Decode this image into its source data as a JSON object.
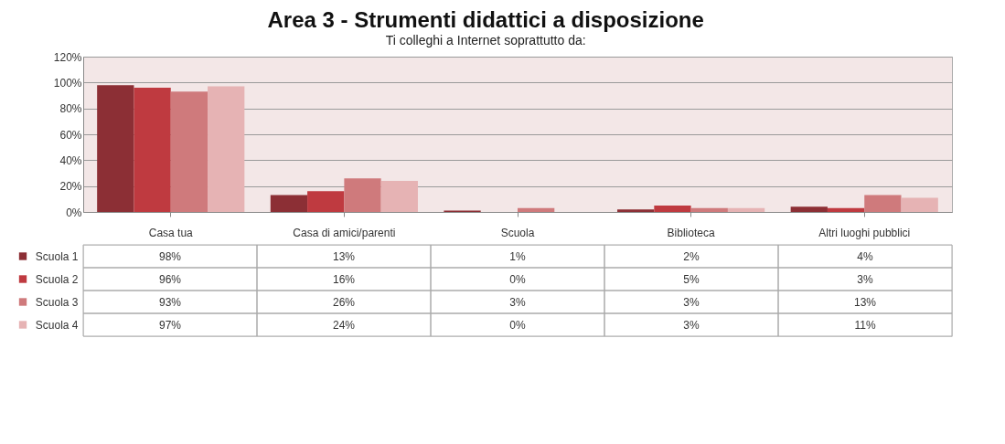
{
  "chart_data": {
    "type": "bar",
    "title": "Area 3 - Strumenti didattici a disposizione",
    "subtitle": "Ti colleghi a Internet soprattutto da:",
    "categories": [
      "Casa tua",
      "Casa di amici/parenti",
      "Scuola",
      "Biblioteca",
      "Altri luoghi pubblici"
    ],
    "series": [
      {
        "name": "Scuola 1",
        "color": "#8c2f35",
        "values": [
          98,
          13,
          1,
          2,
          4
        ],
        "value_labels": [
          "98%",
          "13%",
          "1%",
          "2%",
          "4%"
        ]
      },
      {
        "name": "Scuola 2",
        "color": "#bf3a40",
        "values": [
          96,
          16,
          0,
          5,
          3
        ],
        "value_labels": [
          "96%",
          "16%",
          "0%",
          "5%",
          "3%"
        ]
      },
      {
        "name": "Scuola 3",
        "color": "#cf7a7c",
        "values": [
          93,
          26,
          3,
          3,
          13
        ],
        "value_labels": [
          "93%",
          "26%",
          "3%",
          "3%",
          "13%"
        ]
      },
      {
        "name": "Scuola 4",
        "color": "#e6b3b4",
        "values": [
          97,
          24,
          0,
          3,
          11
        ],
        "value_labels": [
          "97%",
          "24%",
          "0%",
          "3%",
          "11%"
        ]
      }
    ],
    "ylim": [
      0,
      120
    ],
    "yticks": [
      {
        "value": 0,
        "label": "0%"
      },
      {
        "value": 20,
        "label": "20%"
      },
      {
        "value": 40,
        "label": "40%"
      },
      {
        "value": 60,
        "label": "60%"
      },
      {
        "value": 80,
        "label": "80%"
      },
      {
        "value": 100,
        "label": "100%"
      },
      {
        "value": 120,
        "label": "120%"
      }
    ],
    "grid": "y",
    "legend": "bottom left"
  }
}
